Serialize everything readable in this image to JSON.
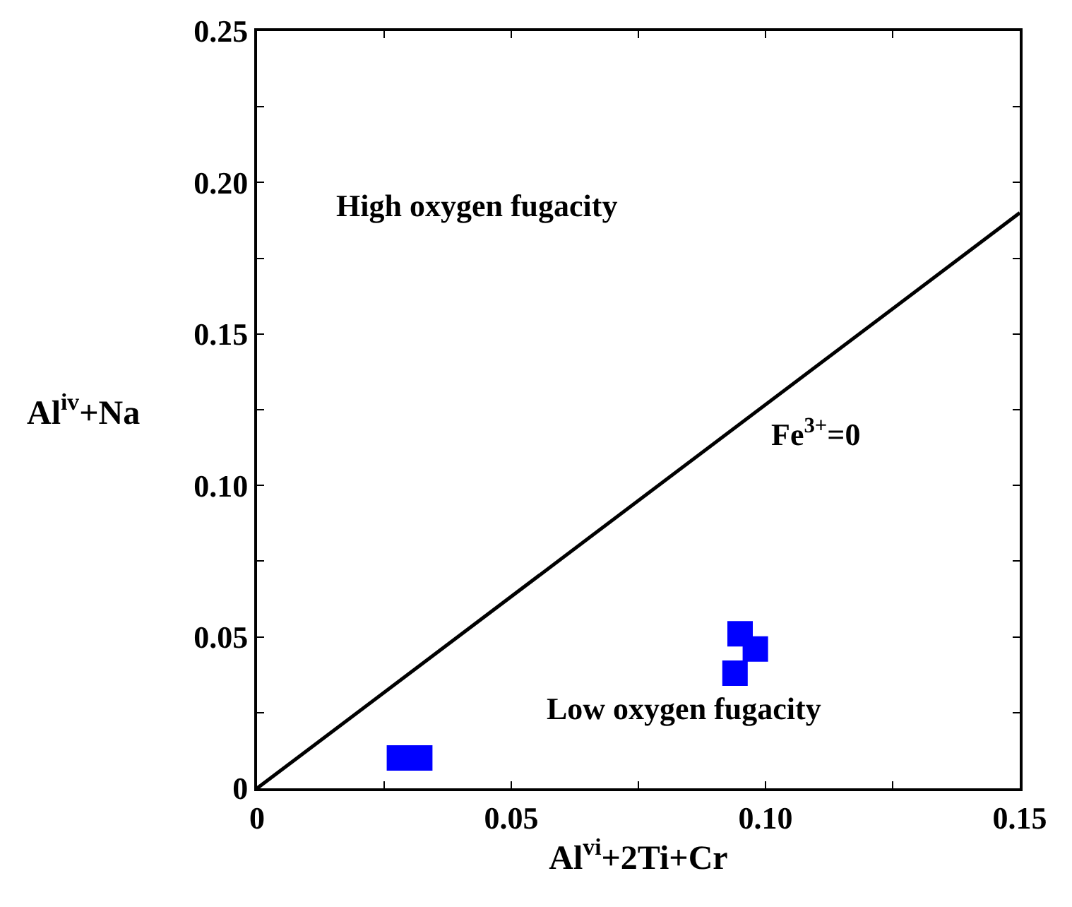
{
  "chart_data": {
    "type": "scatter",
    "xlabel": "Al$^{vi}$+2Ti+Cr",
    "ylabel": "Al$^{iv}$+Na",
    "series": [
      {
        "color": "#0000ff",
        "marker": "square",
        "x": [
          0.028,
          0.032,
          0.095,
          0.098,
          0.094
        ],
        "values": [
          0.01,
          0.01,
          0.051,
          0.046,
          0.038
        ]
      },
      {
        "type": "line",
        "color": "#000000",
        "marker": "none",
        "x": [
          0,
          0.15
        ],
        "values": [
          0,
          0.19
        ]
      }
    ],
    "xlim": [
      0,
      0.15
    ],
    "ylim": [
      0,
      0.25
    ],
    "xticks": [
      0,
      {
        "value": 0.025,
        "label": null
      },
      0.05,
      {
        "value": 0.075,
        "label": null
      },
      {
        "value": 0.1,
        "label": "0.10"
      },
      {
        "value": 0.125,
        "label": null
      },
      0.15
    ],
    "yticks": [
      0,
      {
        "value": 0.025,
        "label": null
      },
      0.05,
      {
        "value": 0.075,
        "label": null
      },
      {
        "value": 0.1,
        "label": "0.10"
      },
      {
        "value": 0.125,
        "label": null
      },
      0.15,
      {
        "value": 0.175,
        "label": null
      },
      {
        "value": 0.2,
        "label": "0.20"
      },
      {
        "value": 0.225,
        "label": null
      },
      0.25
    ],
    "annotations": [
      "High oxygen fugacity",
      "Fe$^{3+}$=0",
      "Low oxygen fugacity"
    ]
  }
}
